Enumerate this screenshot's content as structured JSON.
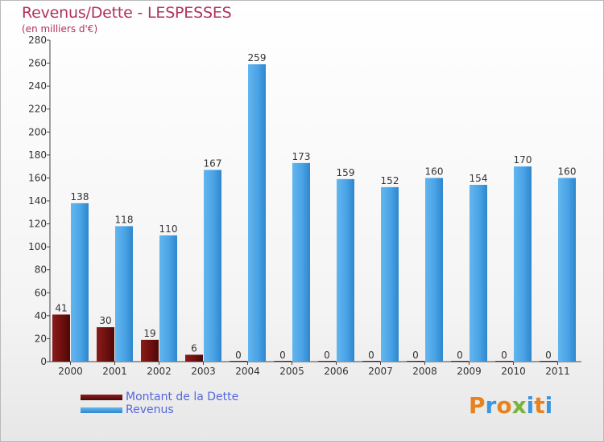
{
  "header": {
    "title": "Revenus/Dette - LESPESSES",
    "subtitle": "(en milliers d'€)"
  },
  "colors": {
    "dette": "#6e0f0f",
    "revenus": "#3a96de",
    "title": "#b0325d",
    "legend_text": "#5566dd"
  },
  "legend": {
    "items": [
      {
        "label": "Montant de la Dette",
        "color": "#6e0f0f"
      },
      {
        "label": "Revenus",
        "color": "#3a96de"
      }
    ]
  },
  "logo": {
    "text": "Proxiti"
  },
  "chart_data": {
    "type": "bar",
    "title": "Revenus/Dette - LESPESSES",
    "subtitle": "(en milliers d'€)",
    "categories": [
      "2000",
      "2001",
      "2002",
      "2003",
      "2004",
      "2005",
      "2006",
      "2007",
      "2008",
      "2009",
      "2010",
      "2011"
    ],
    "series": [
      {
        "name": "Montant de la Dette",
        "color": "#6e0f0f",
        "values": [
          41,
          30,
          19,
          6,
          0,
          0,
          0,
          0,
          0,
          0,
          0,
          0
        ]
      },
      {
        "name": "Revenus",
        "color": "#3a96de",
        "values": [
          138,
          118,
          110,
          167,
          259,
          173,
          159,
          152,
          160,
          154,
          170,
          160
        ]
      }
    ],
    "ylim": [
      0,
      280
    ],
    "yticks": [
      0,
      20,
      40,
      60,
      80,
      100,
      120,
      140,
      160,
      180,
      200,
      220,
      240,
      260,
      280
    ],
    "grid": false,
    "legend_position": "bottom-left"
  }
}
